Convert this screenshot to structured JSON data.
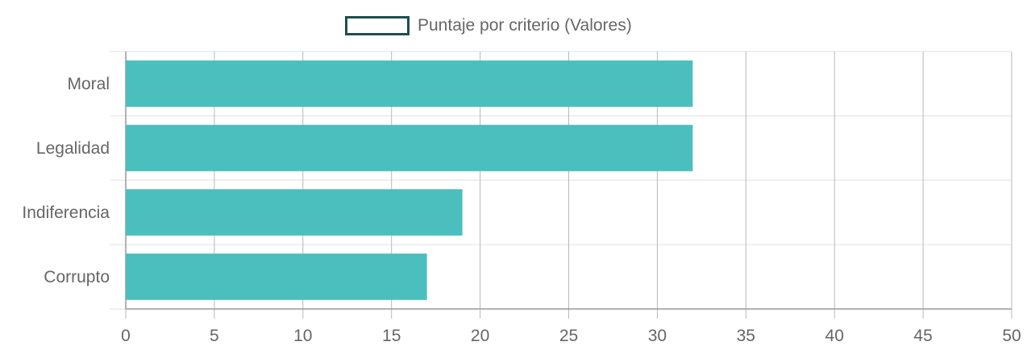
{
  "chart_data": {
    "type": "bar",
    "orientation": "horizontal",
    "categories": [
      "Moral",
      "Legalidad",
      "Indiferencia",
      "Corrupto"
    ],
    "series": [
      {
        "name": "Puntaje por criterio (Valores)",
        "values": [
          32,
          32,
          19,
          17
        ]
      }
    ],
    "xlim": [
      0,
      50
    ],
    "x_ticks": [
      0,
      5,
      10,
      15,
      20,
      25,
      30,
      35,
      40,
      45,
      50
    ],
    "grid": true,
    "legend_position": "top-center",
    "colors": {
      "bar": "#4abfbd",
      "legend_border": "#1e4f4d",
      "grid": "#e0e0e0",
      "vertical_grid": "#b8b8b8",
      "text": "#666666"
    }
  }
}
